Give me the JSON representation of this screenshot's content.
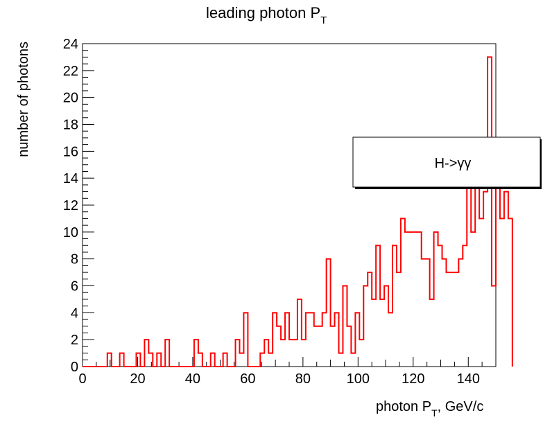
{
  "chart_data": {
    "type": "histogram",
    "title": {
      "main": "leading photon P",
      "sub": "T"
    },
    "xlabel": {
      "main": "photon P",
      "sub": "T",
      "suffix": ", GeV/c"
    },
    "ylabel": "number of photons",
    "xlim": [
      0,
      150
    ],
    "ylim": [
      0,
      24
    ],
    "x_ticks": [
      "0",
      "20",
      "40",
      "60",
      "80",
      "100",
      "120",
      "140"
    ],
    "y_ticks": [
      "0",
      "2",
      "4",
      "6",
      "8",
      "10",
      "12",
      "14",
      "16",
      "18",
      "20",
      "22",
      "24"
    ],
    "bin_width": 1.5,
    "bin_start": 0,
    "values": [
      0,
      0,
      0,
      0,
      0,
      0,
      1,
      0,
      0,
      1,
      0,
      0,
      0,
      1,
      0,
      2,
      1,
      0,
      1,
      0,
      2,
      0,
      0,
      0,
      0,
      0,
      0,
      2,
      1,
      0,
      0,
      1,
      0,
      0,
      1,
      0,
      0,
      2,
      1,
      4,
      0,
      0,
      0,
      1,
      2,
      1,
      4,
      3,
      2,
      4,
      2,
      2,
      5,
      2,
      4,
      4,
      3,
      3,
      4,
      8,
      3,
      4,
      1,
      6,
      3,
      1,
      4,
      2,
      6,
      7,
      5,
      9,
      5,
      6,
      4,
      9,
      7,
      11,
      10,
      10,
      10,
      10,
      8,
      8,
      5,
      10,
      9,
      8,
      7,
      7,
      7,
      8,
      9,
      15,
      10,
      14,
      11,
      13,
      23,
      6,
      15,
      11,
      13,
      11
    ],
    "legend": {
      "label": "H->γγ",
      "position": "right"
    },
    "colors": {
      "series": "#ff0000",
      "axes": "#000000"
    }
  }
}
